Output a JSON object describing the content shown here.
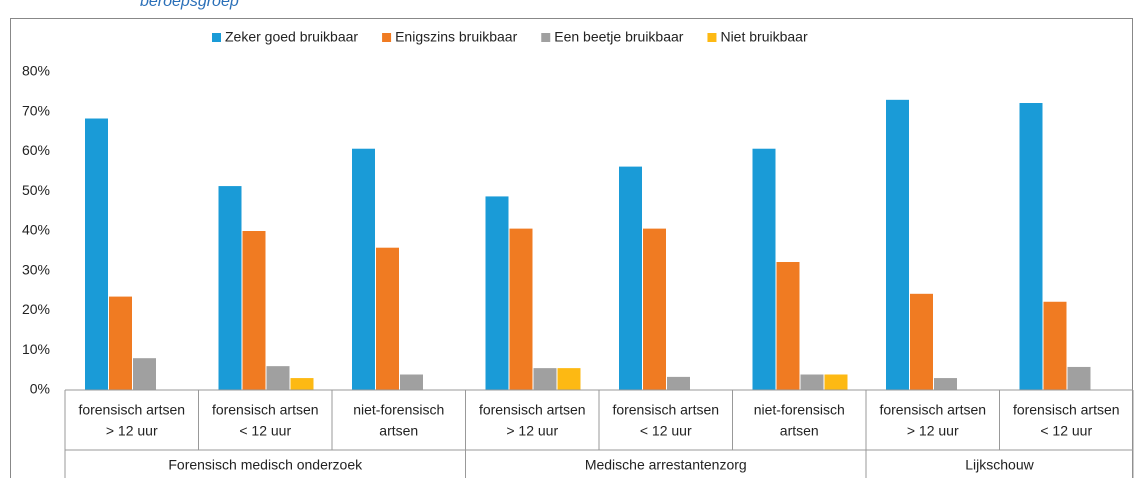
{
  "chart_data": {
    "type": "bar",
    "subtitle": "beroepsgroep",
    "categories": [
      [
        "forensisch artsen",
        "> 12 uur"
      ],
      [
        "forensisch artsen",
        "< 12 uur"
      ],
      [
        "niet-forensisch",
        "artsen"
      ],
      [
        "forensisch artsen",
        "> 12 uur"
      ],
      [
        "forensisch artsen",
        "< 12 uur"
      ],
      [
        "niet-forensisch",
        "artsen"
      ],
      [
        "forensisch artsen",
        "> 12 uur"
      ],
      [
        "forensisch artsen",
        "< 12 uur"
      ]
    ],
    "groups": [
      {
        "label": "Forensisch medisch onderzoek",
        "start": 0,
        "end": 2
      },
      {
        "label": "Medische arrestantenzorg",
        "start": 3,
        "end": 5
      },
      {
        "label": "Lijkschouw",
        "start": 6,
        "end": 7
      }
    ],
    "series": [
      {
        "name": "Zeker goed bruikbaar",
        "color": "#1a9bd7",
        "values": [
          68.3,
          51.3,
          60.7,
          48.7,
          56.2,
          60.7,
          73.0,
          72.2
        ]
      },
      {
        "name": "Enigszins bruikbaar",
        "color": "#f07b22",
        "values": [
          23.5,
          40.0,
          35.8,
          40.6,
          40.6,
          32.2,
          24.2,
          22.2
        ]
      },
      {
        "name": "Een beetje bruikbaar",
        "color": "#a0a0a0",
        "values": [
          8.0,
          6.0,
          3.9,
          5.5,
          3.3,
          3.9,
          3.0,
          5.8
        ]
      },
      {
        "name": "Niet bruikbaar",
        "color": "#fdb913",
        "values": [
          0,
          3.0,
          0,
          5.5,
          0,
          3.9,
          0,
          0
        ]
      }
    ],
    "ylim": [
      0,
      80
    ],
    "yticks": [
      {
        "value": 0,
        "label": "0%"
      },
      {
        "value": 10,
        "label": "10%"
      },
      {
        "value": 20,
        "label": "20%"
      },
      {
        "value": 30,
        "label": "30%"
      },
      {
        "value": 40,
        "label": "40%"
      },
      {
        "value": 50,
        "label": "50%"
      },
      {
        "value": 60,
        "label": "60%"
      },
      {
        "value": 70,
        "label": "70%"
      },
      {
        "value": 80,
        "label": "80%"
      }
    ],
    "legend": "top",
    "grid": false
  }
}
